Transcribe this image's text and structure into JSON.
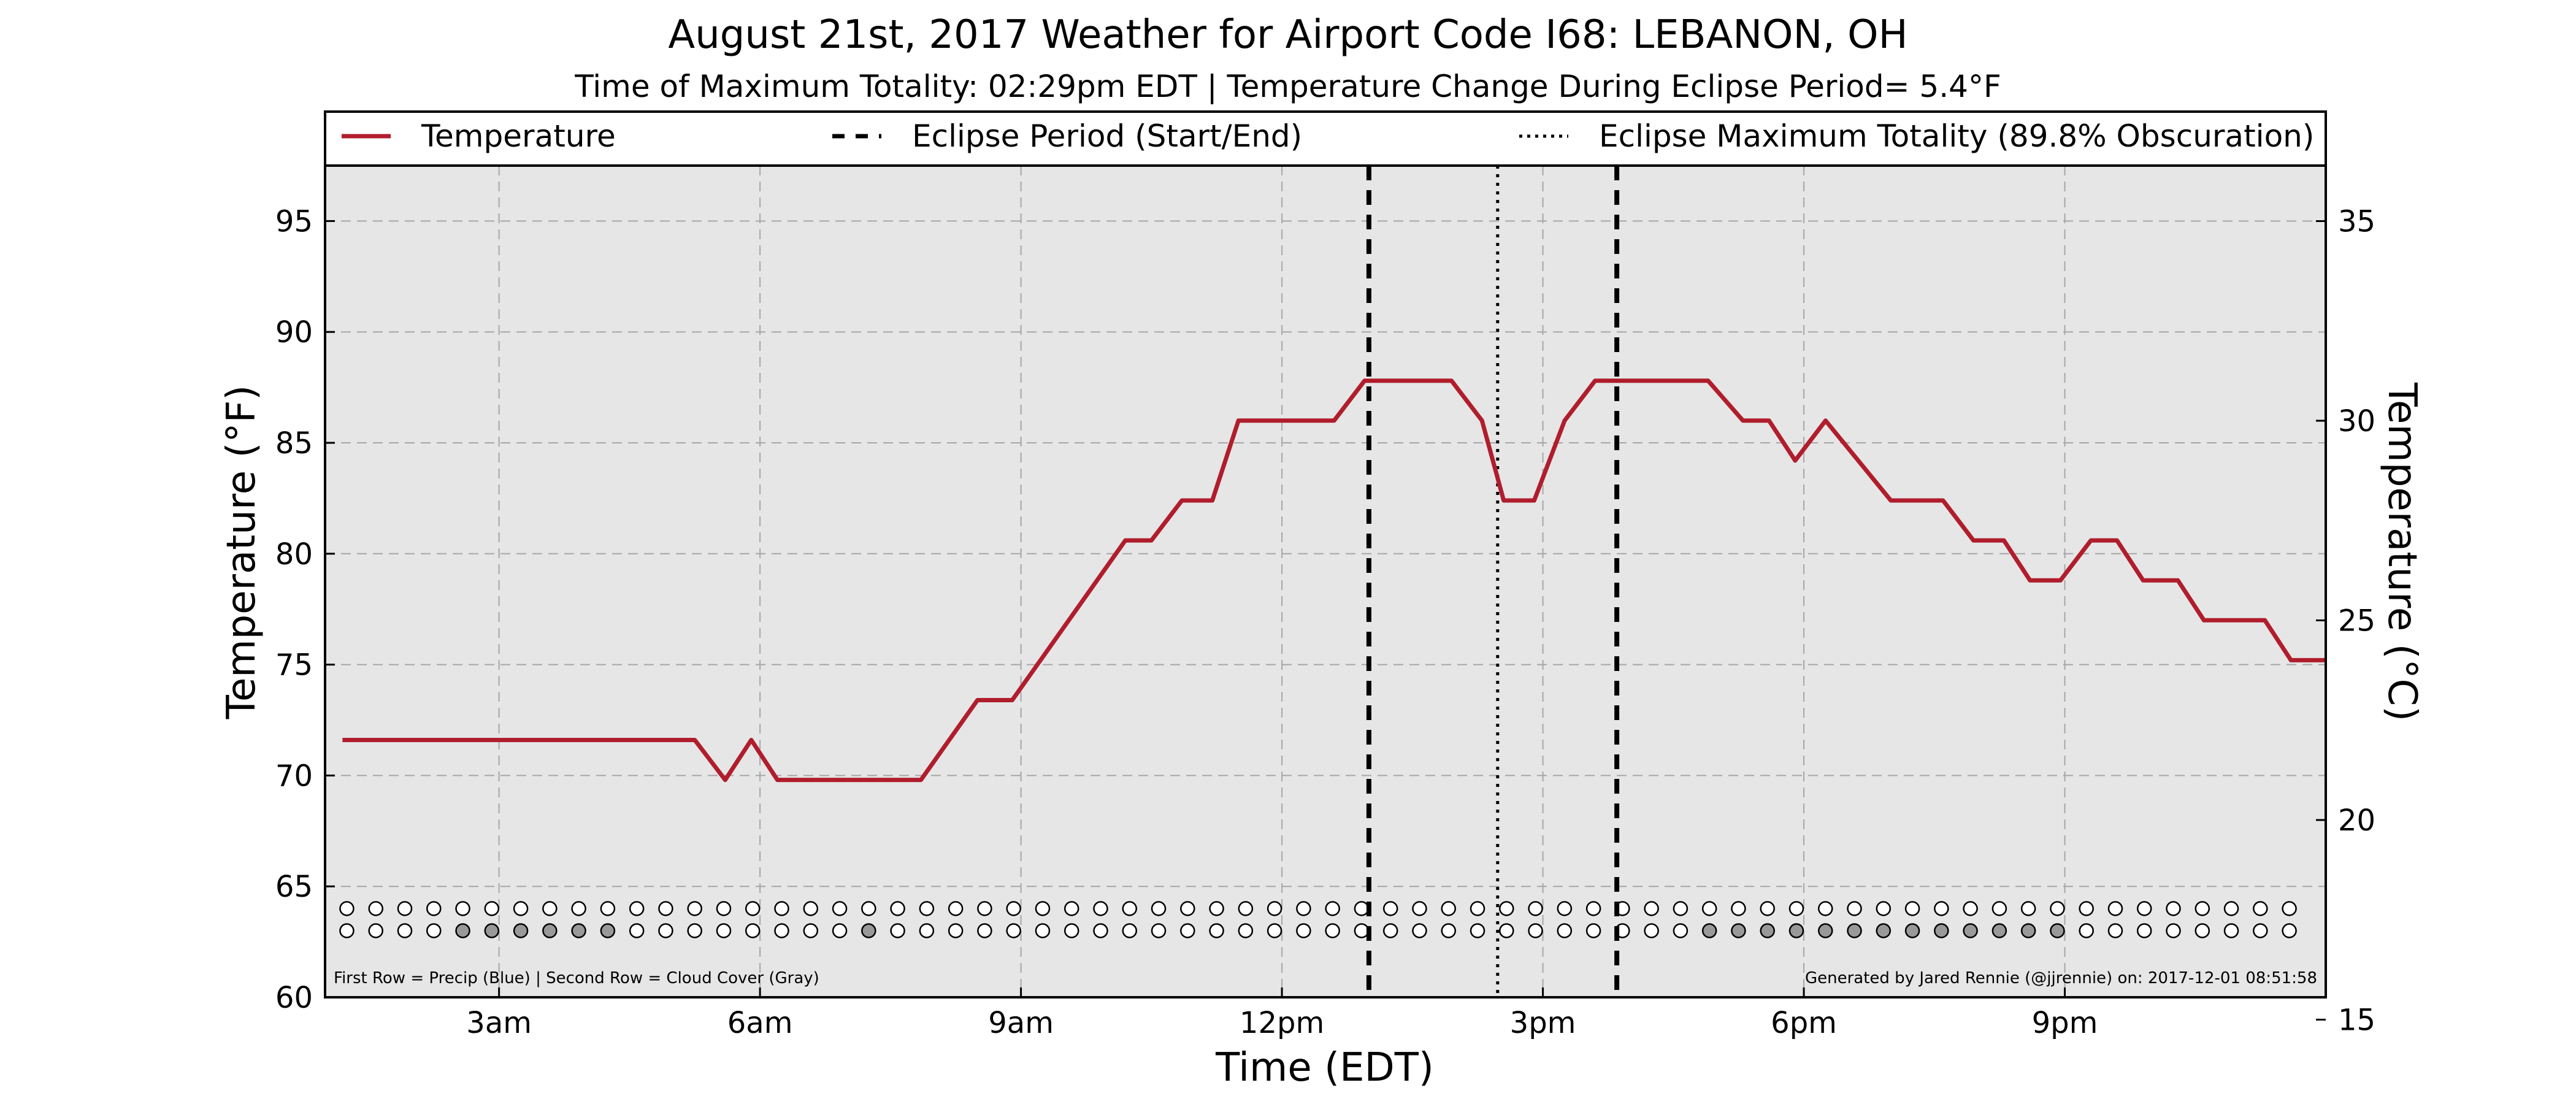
{
  "chart_data": {
    "type": "line",
    "title": "August 21st, 2017 Weather for Airport Code I68: LEBANON, OH",
    "subtitle": "Time of Maximum Totality: 02:29pm EDT | Temperature Change During Eclipse Period= 5.4°F",
    "xlabel": "Time (EDT)",
    "ylabel": "Temperature (°F)",
    "ylabel_right": "Temperature (°C)",
    "xlim": [
      1.0,
      24.0
    ],
    "ylim": [
      60,
      97.5
    ],
    "ylim_right_c": [
      15.56,
      36.39
    ],
    "x_ticks": [
      {
        "x": 3,
        "label": "3am"
      },
      {
        "x": 6,
        "label": "6am"
      },
      {
        "x": 9,
        "label": "9am"
      },
      {
        "x": 12,
        "label": "12pm"
      },
      {
        "x": 15,
        "label": "3pm"
      },
      {
        "x": 18,
        "label": "6pm"
      },
      {
        "x": 21,
        "label": "9pm"
      }
    ],
    "y_ticks": [
      60,
      65,
      70,
      75,
      80,
      85,
      90,
      95
    ],
    "y_ticks_right": [
      15,
      20,
      25,
      30,
      35
    ],
    "grid": true,
    "legend_position": "top",
    "legend": [
      {
        "label": "Temperature",
        "style": "solid",
        "color": "#b01d2c"
      },
      {
        "label": "Eclipse Period (Start/End)",
        "style": "dashed",
        "color": "#000000"
      },
      {
        "label": "Eclipse Maximum Totality (89.8% Obscuration)",
        "style": "dotted",
        "color": "#000000"
      }
    ],
    "series": [
      {
        "name": "Temperature",
        "x": [
          1.2,
          5.25,
          5.6,
          5.9,
          6.2,
          6.7,
          7.3,
          7.85,
          8.5,
          8.9,
          10.2,
          10.5,
          10.85,
          11.2,
          11.5,
          12.6,
          12.95,
          13.4,
          13.95,
          14.3,
          14.55,
          14.9,
          15.25,
          15.6,
          15.95,
          16.6,
          16.9,
          17.3,
          17.6,
          17.9,
          18.25,
          19.0,
          19.3,
          19.6,
          19.95,
          20.3,
          20.6,
          20.95,
          21.3,
          21.6,
          21.9,
          22.3,
          22.6,
          23.3,
          23.6,
          24.0
        ],
        "values": [
          71.6,
          71.6,
          69.8,
          71.6,
          69.8,
          69.8,
          69.8,
          69.8,
          73.4,
          73.4,
          80.6,
          80.6,
          82.4,
          82.4,
          86.0,
          86.0,
          87.8,
          87.8,
          87.8,
          86.0,
          82.4,
          82.4,
          86.0,
          87.8,
          87.8,
          87.8,
          87.8,
          86.0,
          86.0,
          84.2,
          86.0,
          82.4,
          82.4,
          82.4,
          80.6,
          80.6,
          78.8,
          78.8,
          80.6,
          80.6,
          78.8,
          78.8,
          77.0,
          77.0,
          75.2,
          75.2
        ],
        "color": "#b01d2c"
      }
    ],
    "eclipse_start": 13.0,
    "eclipse_max": 14.48,
    "eclipse_end": 15.85,
    "markers": {
      "x_start": 1.25,
      "x_step": 0.3333,
      "count": 68,
      "precip_row_y": 64,
      "cloud_row_y": 63,
      "cloud_filled": [
        4,
        5,
        6,
        7,
        8,
        9,
        18,
        47,
        48,
        49,
        50,
        51,
        52,
        53,
        54,
        55,
        56,
        57,
        58,
        59
      ],
      "empty_color": "#ffffff",
      "cloud_color": "#999999"
    },
    "annotations": [
      {
        "text": "First Row = Precip (Blue) | Second Row = Cloud Cover (Gray)",
        "position": "bottom-left"
      },
      {
        "text": "Generated by Jared Rennie (@jjrennie) on: 2017-12-01 08:51:58",
        "position": "bottom-right"
      }
    ],
    "colors": {
      "plot_background": "#e6e6e6",
      "grid": "#a6a6a6"
    }
  }
}
